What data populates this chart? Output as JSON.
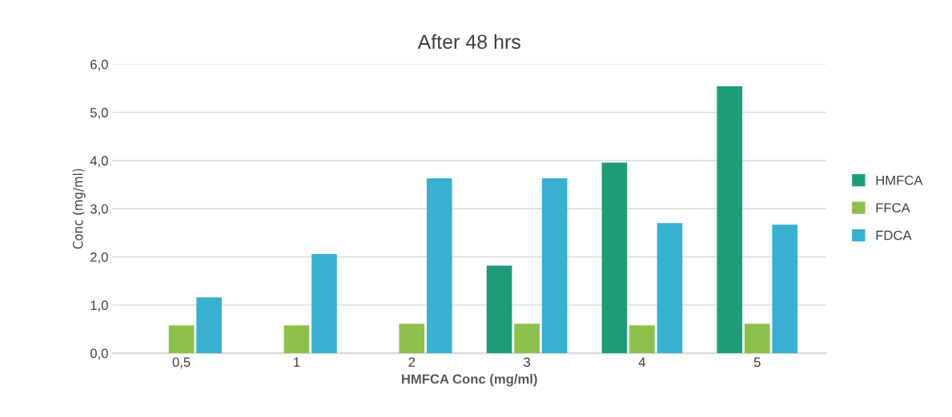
{
  "chart_data": {
    "type": "bar",
    "title": "After 48 hrs",
    "xlabel": "HMFCA Conc (mg/ml)",
    "ylabel": "Conc (mg/ml)",
    "categories": [
      "0,5",
      "1",
      "2",
      "3",
      "4",
      "5"
    ],
    "series": [
      {
        "name": "HMFCA",
        "color": "#1e9c78",
        "values": [
          null,
          null,
          null,
          1.82,
          3.96,
          5.54
        ]
      },
      {
        "name": "FFCA",
        "color": "#8cc04a",
        "values": [
          0.58,
          0.58,
          0.61,
          0.61,
          0.58,
          0.61
        ]
      },
      {
        "name": "FDCA",
        "color": "#37b0d2",
        "values": [
          1.16,
          2.06,
          3.63,
          3.63,
          2.7,
          2.67
        ]
      }
    ],
    "ylim": [
      0,
      6
    ],
    "yticks": [
      {
        "value": 0,
        "label": "0,0"
      },
      {
        "value": 1,
        "label": "1,0"
      },
      {
        "value": 2,
        "label": "2,0"
      },
      {
        "value": 3,
        "label": "3,0"
      },
      {
        "value": 4,
        "label": "4,0"
      },
      {
        "value": 5,
        "label": "5,0"
      },
      {
        "value": 6,
        "label": "6,0"
      }
    ],
    "grid": "y",
    "legend": "right"
  }
}
